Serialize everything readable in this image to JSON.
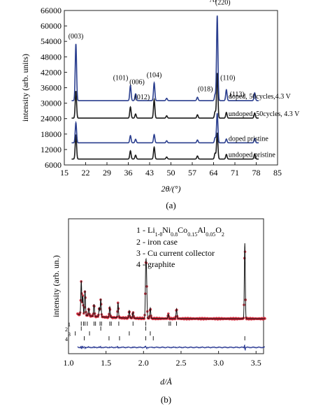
{
  "chart_data": [
    {
      "type": "line",
      "panel_label": "(a)",
      "xlabel": "2θ/(°)",
      "ylabel": "intensity (arb. units)",
      "xlim": [
        15,
        85
      ],
      "ylim": [
        6000,
        66000
      ],
      "x_ticks": [
        "15",
        "22",
        "29",
        "36",
        "43",
        "50",
        "57",
        "64",
        "71",
        "78",
        "85"
      ],
      "y_ticks": [
        "6000",
        "12000",
        "18000",
        "24000",
        "30000",
        "36000",
        "42000",
        "48000",
        "54000",
        "60000",
        "66000"
      ],
      "series": [
        {
          "name": "undoped pristine",
          "color": "#1a1a1a",
          "baseline": 8300,
          "peaks": [
            [
              18.8,
              9500
            ],
            [
              36.7,
              3200
            ],
            [
              38.4,
              1500
            ],
            [
              44.5,
              4600
            ],
            [
              48.6,
              800
            ],
            [
              58.7,
              1200
            ],
            [
              64.5,
              2300
            ],
            [
              65.2,
              10200
            ],
            [
              68.2,
              1800
            ],
            [
              77.5,
              2000
            ]
          ]
        },
        {
          "name": "doped pristine",
          "color": "#2b3f8f",
          "baseline": 14600,
          "peaks": [
            [
              18.8,
              7800
            ],
            [
              36.7,
              2800
            ],
            [
              38.4,
              1400
            ],
            [
              44.5,
              3200
            ],
            [
              48.6,
              800
            ],
            [
              58.7,
              1100
            ],
            [
              64.5,
              2000
            ],
            [
              65.2,
              11500
            ],
            [
              68.2,
              1500
            ],
            [
              77.5,
              1700
            ]
          ]
        },
        {
          "name": "undoped, 50cycles, 4.3 V",
          "color": "#1a1a1a",
          "baseline": 24200,
          "peaks": [
            [
              18.8,
              10500
            ],
            [
              36.7,
              4300
            ],
            [
              38.4,
              1600
            ],
            [
              44.5,
              7200
            ],
            [
              48.6,
              900
            ],
            [
              58.7,
              1300
            ],
            [
              64.5,
              2500
            ],
            [
              65.2,
              17500
            ],
            [
              68.2,
              2200
            ],
            [
              77.5,
              2000
            ]
          ]
        },
        {
          "name": "doped, 50cycles,4.3 V",
          "color": "#2b3f8f",
          "baseline": 31000,
          "peaks": [
            [
              18.8,
              22000
            ],
            [
              36.7,
              5800
            ],
            [
              38.4,
              2600
            ],
            [
              44.5,
              6900
            ],
            [
              48.6,
              900
            ],
            [
              58.7,
              1300
            ],
            [
              64.5,
              2400
            ],
            [
              65.2,
              33000
            ],
            [
              68.2,
              4200
            ],
            [
              77.5,
              3000
            ]
          ]
        }
      ],
      "annotations": [
        {
          "text": "(003)",
          "x": 18.8
        },
        {
          "text": "(101)",
          "x": 36.7
        },
        {
          "text": "(006)",
          "x": 38.4
        },
        {
          "text": "(012)",
          "x": 39.2
        },
        {
          "text": "(104)",
          "x": 44.5
        },
        {
          "text": "(018)",
          "x": 64.5
        },
        {
          "text": "Al",
          "x": 65.2
        },
        {
          "text": "(220)",
          "x": 65.2
        },
        {
          "text": "(110)",
          "x": 68.2
        },
        {
          "text": "(113)",
          "x": 70.8
        }
      ]
    },
    {
      "type": "scatter",
      "panel_label": "(b)",
      "xlabel": "d/Å",
      "ylabel": "intensity (arb. un.)",
      "xlim": [
        1.0,
        3.6
      ],
      "x_ticks": [
        "1.0",
        "1.5",
        "2.0",
        "2.5",
        "3.0",
        "3.5"
      ],
      "legend_entries": [
        {
          "num": "1 - ",
          "main": "Li",
          "sub": "1-θ",
          "main2": "Ni",
          "sub2": "0.8",
          "main3": "Co",
          "sub3": "0.15",
          "main4": "Al",
          "sub4": "0.05",
          "main5": "O",
          "sub5": "2"
        },
        {
          "text": "2 - iron case"
        },
        {
          "text": "3 - Cu current collector"
        },
        {
          "text": "4 - graphite"
        }
      ],
      "observed_color": "#d42a3c",
      "calculated_color": "#111111",
      "difference_color": "#1d2d8c",
      "peaks_d": [
        [
          1.17,
          0.45
        ],
        [
          1.19,
          0.25
        ],
        [
          1.22,
          0.33
        ],
        [
          1.27,
          0.1
        ],
        [
          1.34,
          0.16
        ],
        [
          1.41,
          0.12
        ],
        [
          1.43,
          0.24
        ],
        [
          1.55,
          0.14
        ],
        [
          1.66,
          0.2
        ],
        [
          1.81,
          0.1
        ],
        [
          1.86,
          0.08
        ],
        [
          2.03,
          0.62
        ],
        [
          2.04,
          0.48
        ],
        [
          2.09,
          0.14
        ],
        [
          2.33,
          0.06
        ],
        [
          2.44,
          0.13
        ],
        [
          3.35,
          1.0
        ]
      ],
      "reflection_rows": [
        {
          "label": "1",
          "d": [
            1.17,
            1.2,
            1.22,
            1.25,
            1.34,
            1.36,
            1.42,
            1.44,
            1.55,
            1.57,
            1.67,
            1.86,
            2.03,
            2.34,
            2.36,
            2.44
          ]
        },
        {
          "label": "2",
          "d": [
            1.17,
            1.43,
            2.03
          ]
        },
        {
          "label": "3",
          "d": [
            1.09,
            1.28,
            1.81,
            2.09
          ]
        },
        {
          "label": "4",
          "d": [
            1.21,
            1.54,
            1.68,
            2.03,
            2.13,
            3.35
          ]
        }
      ]
    }
  ]
}
